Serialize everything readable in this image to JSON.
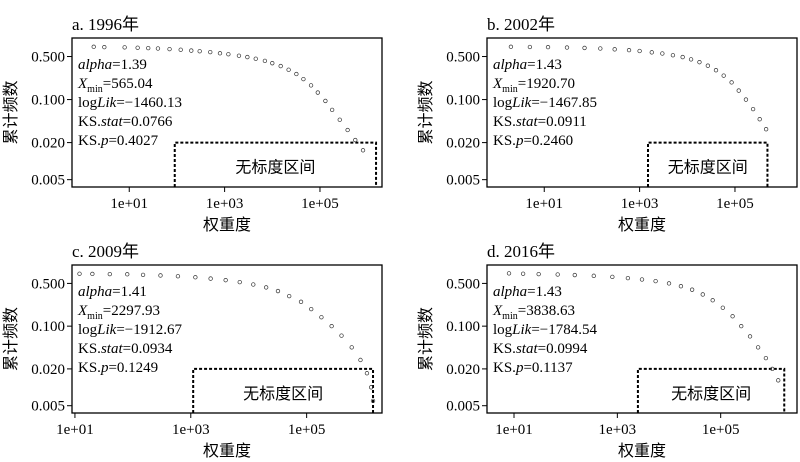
{
  "chart_data": [
    {
      "type": "scatter",
      "title": "a. 1996年",
      "xlabel": "权重度",
      "ylabel": "累计频数",
      "x_scale": "log",
      "y_scale": "log",
      "xlim": [
        0.63,
        2000000
      ],
      "ylim": [
        0.0038,
        1.0
      ],
      "x_ticks": [
        "1e+01",
        "1e+03",
        "1e+05"
      ],
      "y_ticks": [
        "0.500",
        "0.100",
        "0.020",
        "0.005"
      ],
      "stats": {
        "alpha": "1.39",
        "xmin": "565.04",
        "loglik": "−1460.13",
        "ks_stat": "0.0766",
        "ks_p": "0.4027"
      },
      "region_label": "无标度区间",
      "region_x": [
        90,
        1500000
      ],
      "region_top": 0.02,
      "points": [
        [
          1.8,
          0.72
        ],
        [
          3,
          0.71
        ],
        [
          8,
          0.705
        ],
        [
          15,
          0.695
        ],
        [
          25,
          0.685
        ],
        [
          40,
          0.675
        ],
        [
          70,
          0.66
        ],
        [
          120,
          0.645
        ],
        [
          200,
          0.625
        ],
        [
          300,
          0.61
        ],
        [
          500,
          0.59
        ],
        [
          800,
          0.565
        ],
        [
          1200,
          0.545
        ],
        [
          2000,
          0.515
        ],
        [
          3000,
          0.49
        ],
        [
          4500,
          0.46
        ],
        [
          7000,
          0.425
        ],
        [
          10000,
          0.39
        ],
        [
          15000,
          0.35
        ],
        [
          22000,
          0.305
        ],
        [
          32000,
          0.26
        ],
        [
          45000,
          0.215
        ],
        [
          65000,
          0.17
        ],
        [
          90000,
          0.13
        ],
        [
          130000,
          0.095
        ],
        [
          180000,
          0.068
        ],
        [
          260000,
          0.047
        ],
        [
          380000,
          0.032
        ],
        [
          550000,
          0.022
        ],
        [
          800000,
          0.015
        ]
      ]
    },
    {
      "type": "scatter",
      "title": "b. 2002年",
      "xlabel": "权重度",
      "ylabel": "累计频数",
      "x_scale": "log",
      "y_scale": "log",
      "xlim": [
        0.63,
        2000000
      ],
      "ylim": [
        0.0038,
        1.0
      ],
      "x_ticks": [
        "1e+01",
        "1e+03",
        "1e+05"
      ],
      "y_ticks": [
        "0.500",
        "0.100",
        "0.020",
        "0.005"
      ],
      "stats": {
        "alpha": "1.43",
        "xmin": "1920.70",
        "loglik": "−1467.85",
        "ks_stat": "0.0911",
        "ks_p": "0.2460"
      },
      "region_label": "无标度区间",
      "region_x": [
        1500,
        480000
      ],
      "region_top": 0.02,
      "points": [
        [
          2,
          0.72
        ],
        [
          5,
          0.715
        ],
        [
          12,
          0.71
        ],
        [
          30,
          0.7
        ],
        [
          70,
          0.69
        ],
        [
          150,
          0.675
        ],
        [
          300,
          0.655
        ],
        [
          600,
          0.635
        ],
        [
          1000,
          0.615
        ],
        [
          1800,
          0.585
        ],
        [
          3000,
          0.56
        ],
        [
          5000,
          0.525
        ],
        [
          8000,
          0.49
        ],
        [
          12000,
          0.45
        ],
        [
          18000,
          0.405
        ],
        [
          27000,
          0.355
        ],
        [
          40000,
          0.3
        ],
        [
          58000,
          0.245
        ],
        [
          85000,
          0.19
        ],
        [
          120000,
          0.14
        ],
        [
          170000,
          0.1
        ],
        [
          240000,
          0.07
        ],
        [
          330000,
          0.048
        ],
        [
          450000,
          0.033
        ]
      ]
    },
    {
      "type": "scatter",
      "title": "c. 2009年",
      "xlabel": "权重度",
      "ylabel": "累计频数",
      "x_scale": "log",
      "y_scale": "log",
      "xlim": [
        8.9,
        2000000
      ],
      "ylim": [
        0.0038,
        1.0
      ],
      "x_ticks": [
        "1e+01",
        "1e+03",
        "1e+05"
      ],
      "y_ticks": [
        "0.500",
        "0.100",
        "0.020",
        "0.005"
      ],
      "stats": {
        "alpha": "1.41",
        "xmin": "2297.93",
        "loglik": "−1912.67",
        "ks_stat": "0.0934",
        "ks_p": "0.1249"
      },
      "region_label": "无标度区间",
      "region_x": [
        1100,
        1400000
      ],
      "region_top": 0.02,
      "points": [
        [
          12,
          0.72
        ],
        [
          20,
          0.715
        ],
        [
          40,
          0.71
        ],
        [
          80,
          0.705
        ],
        [
          150,
          0.69
        ],
        [
          300,
          0.675
        ],
        [
          600,
          0.655
        ],
        [
          1200,
          0.63
        ],
        [
          2200,
          0.6
        ],
        [
          4000,
          0.565
        ],
        [
          7000,
          0.525
        ],
        [
          12000,
          0.48
        ],
        [
          20000,
          0.43
        ],
        [
          32000,
          0.375
        ],
        [
          50000,
          0.31
        ],
        [
          80000,
          0.25
        ],
        [
          120000,
          0.19
        ],
        [
          180000,
          0.14
        ],
        [
          270000,
          0.1
        ],
        [
          400000,
          0.07
        ],
        [
          600000,
          0.045
        ],
        [
          850000,
          0.028
        ],
        [
          1100000,
          0.017
        ],
        [
          1300000,
          0.01
        ],
        [
          1400000,
          0.006
        ]
      ]
    },
    {
      "type": "scatter",
      "title": "d. 2016年",
      "xlabel": "权重度",
      "ylabel": "累计频数",
      "x_scale": "log",
      "y_scale": "log",
      "xlim": [
        3.0,
        3000000
      ],
      "ylim": [
        0.0038,
        1.0
      ],
      "x_ticks": [
        "1e+01",
        "1e+03",
        "1e+05"
      ],
      "y_ticks": [
        "0.500",
        "0.100",
        "0.020",
        "0.005"
      ],
      "stats": {
        "alpha": "1.43",
        "xmin": "3838.63",
        "loglik": "−1784.54",
        "ks_stat": "0.0994",
        "ks_p": "0.1137"
      },
      "region_label": "无标度区间",
      "region_x": [
        2500,
        1700000
      ],
      "region_top": 0.02,
      "points": [
        [
          8,
          0.73
        ],
        [
          15,
          0.72
        ],
        [
          30,
          0.71
        ],
        [
          70,
          0.7
        ],
        [
          150,
          0.685
        ],
        [
          350,
          0.665
        ],
        [
          800,
          0.64
        ],
        [
          1600,
          0.61
        ],
        [
          3000,
          0.58
        ],
        [
          5500,
          0.545
        ],
        [
          10000,
          0.5
        ],
        [
          17000,
          0.45
        ],
        [
          28000,
          0.395
        ],
        [
          45000,
          0.33
        ],
        [
          70000,
          0.265
        ],
        [
          110000,
          0.2
        ],
        [
          170000,
          0.145
        ],
        [
          250000,
          0.1
        ],
        [
          370000,
          0.068
        ],
        [
          530000,
          0.045
        ],
        [
          750000,
          0.03
        ],
        [
          1000000,
          0.02
        ],
        [
          1300000,
          0.013
        ]
      ]
    }
  ]
}
